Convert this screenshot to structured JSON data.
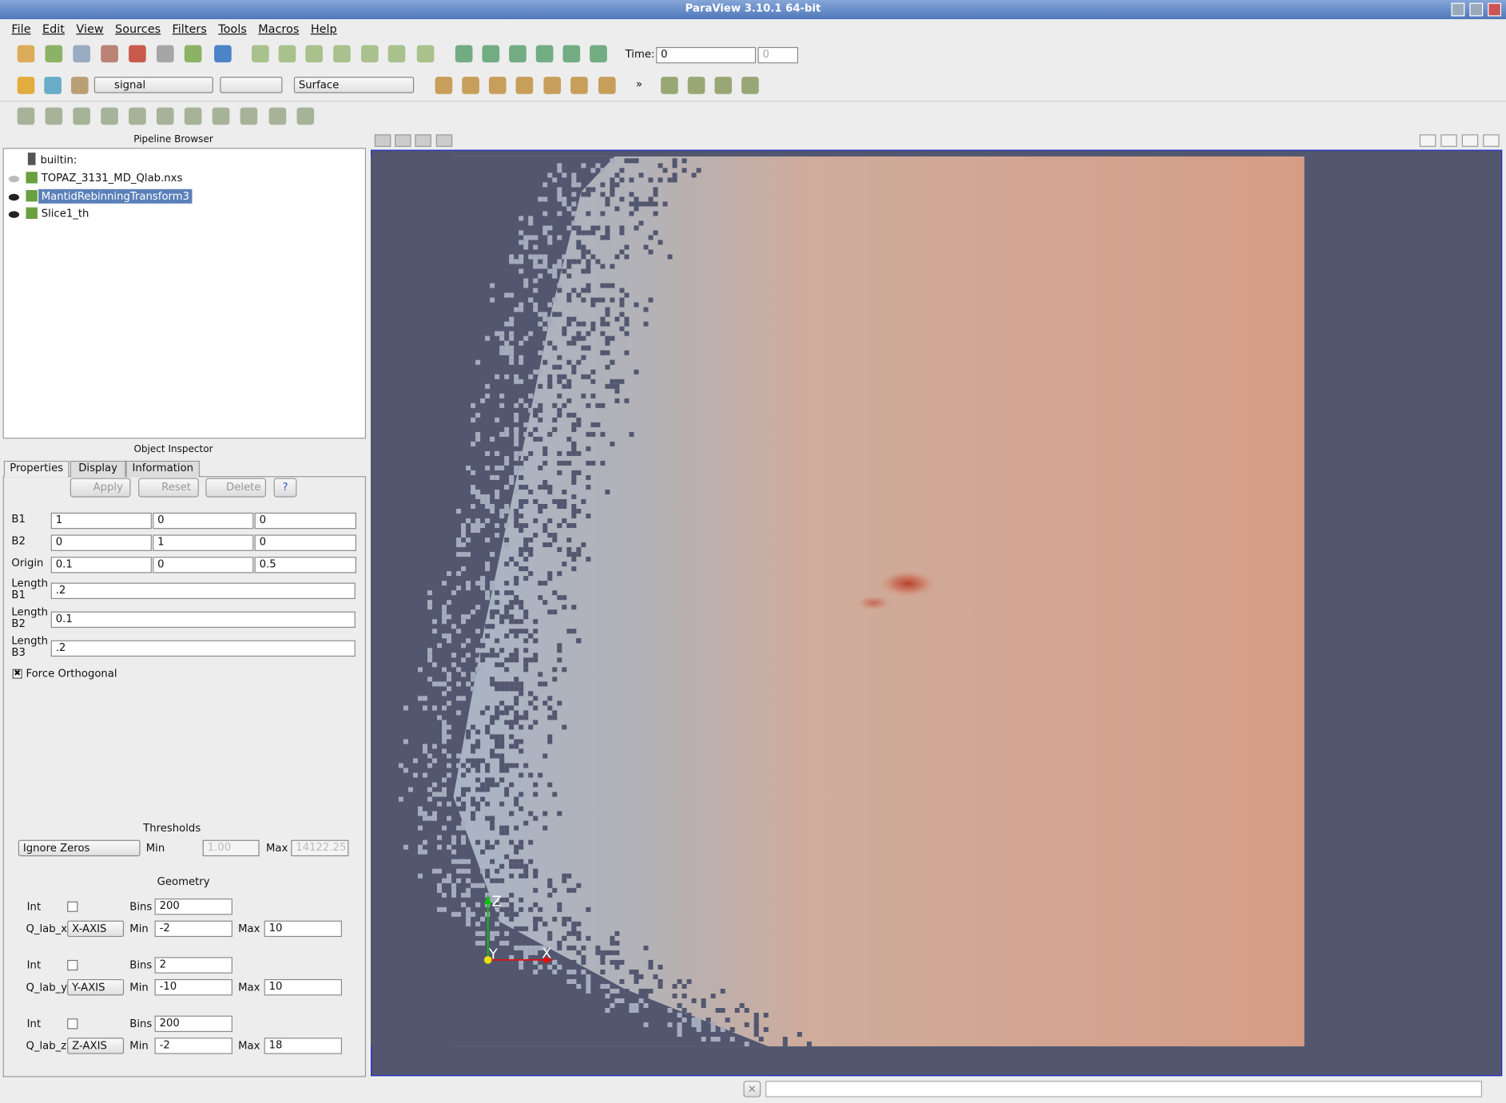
{
  "window": {
    "title": "ParaView 3.10.1 64-bit"
  },
  "menu": [
    "File",
    "Edit",
    "View",
    "Sources",
    "Filters",
    "Tools",
    "Macros",
    "Help"
  ],
  "toolbar": {
    "time_label": "Time:",
    "time_value": "0",
    "time_index": "0",
    "array": "signal",
    "representation": "Surface",
    "more": "»"
  },
  "pipeline_browser": {
    "title": "Pipeline Browser",
    "root": "builtin:",
    "items": [
      "TOPAZ_3131_MD_Qlab.nxs",
      "MantidRebinningTransform3",
      "Slice1_th"
    ]
  },
  "object_inspector": {
    "title": "Object Inspector",
    "tabs": [
      "Properties",
      "Display",
      "Information"
    ],
    "buttons": [
      "Apply",
      "Reset",
      "Delete",
      "?"
    ],
    "fields": [
      {
        "label": "B1",
        "values": [
          "1",
          "0",
          "0"
        ]
      },
      {
        "label": "B2",
        "values": [
          "0",
          "1",
          "0"
        ]
      },
      {
        "label": "Origin",
        "values": [
          "0.1",
          "0",
          "0.5"
        ]
      },
      {
        "label": "Length B1",
        "values": [
          ".2"
        ]
      },
      {
        "label": "Length B2",
        "values": [
          "0.1"
        ]
      },
      {
        "label": "Length B3",
        "values": [
          ".2"
        ]
      }
    ],
    "force_orthogonal": "Force Orthogonal",
    "thresholds": {
      "title": "Thresholds",
      "mode": "Ignore Zeros",
      "min_label": "Min",
      "min": "1.00",
      "max_label": "Max",
      "max": "14122.25"
    },
    "geometry": {
      "title": "Geometry",
      "dimensions": [
        {
          "int_label": "Int",
          "bins_label": "Bins",
          "bins": "200",
          "name": "Q_lab_x",
          "axis": "X-AXIS",
          "min_label": "Min",
          "min": "-2",
          "max_label": "Max",
          "max": "10"
        },
        {
          "int_label": "Int",
          "bins_label": "Bins",
          "bins": "2",
          "name": "Q_lab_y",
          "axis": "Y-AXIS",
          "min_label": "Min",
          "min": "-10",
          "max_label": "Max",
          "max": "10"
        },
        {
          "int_label": "Int",
          "bins_label": "Bins",
          "bins": "200",
          "name": "Q_lab_z",
          "axis": "Z-AXIS",
          "min_label": "Min",
          "min": "-2",
          "max_label": "Max",
          "max": "18"
        }
      ]
    }
  },
  "render_view": {
    "axes": {
      "z": "Z",
      "y": "Y",
      "x": "X"
    }
  }
}
